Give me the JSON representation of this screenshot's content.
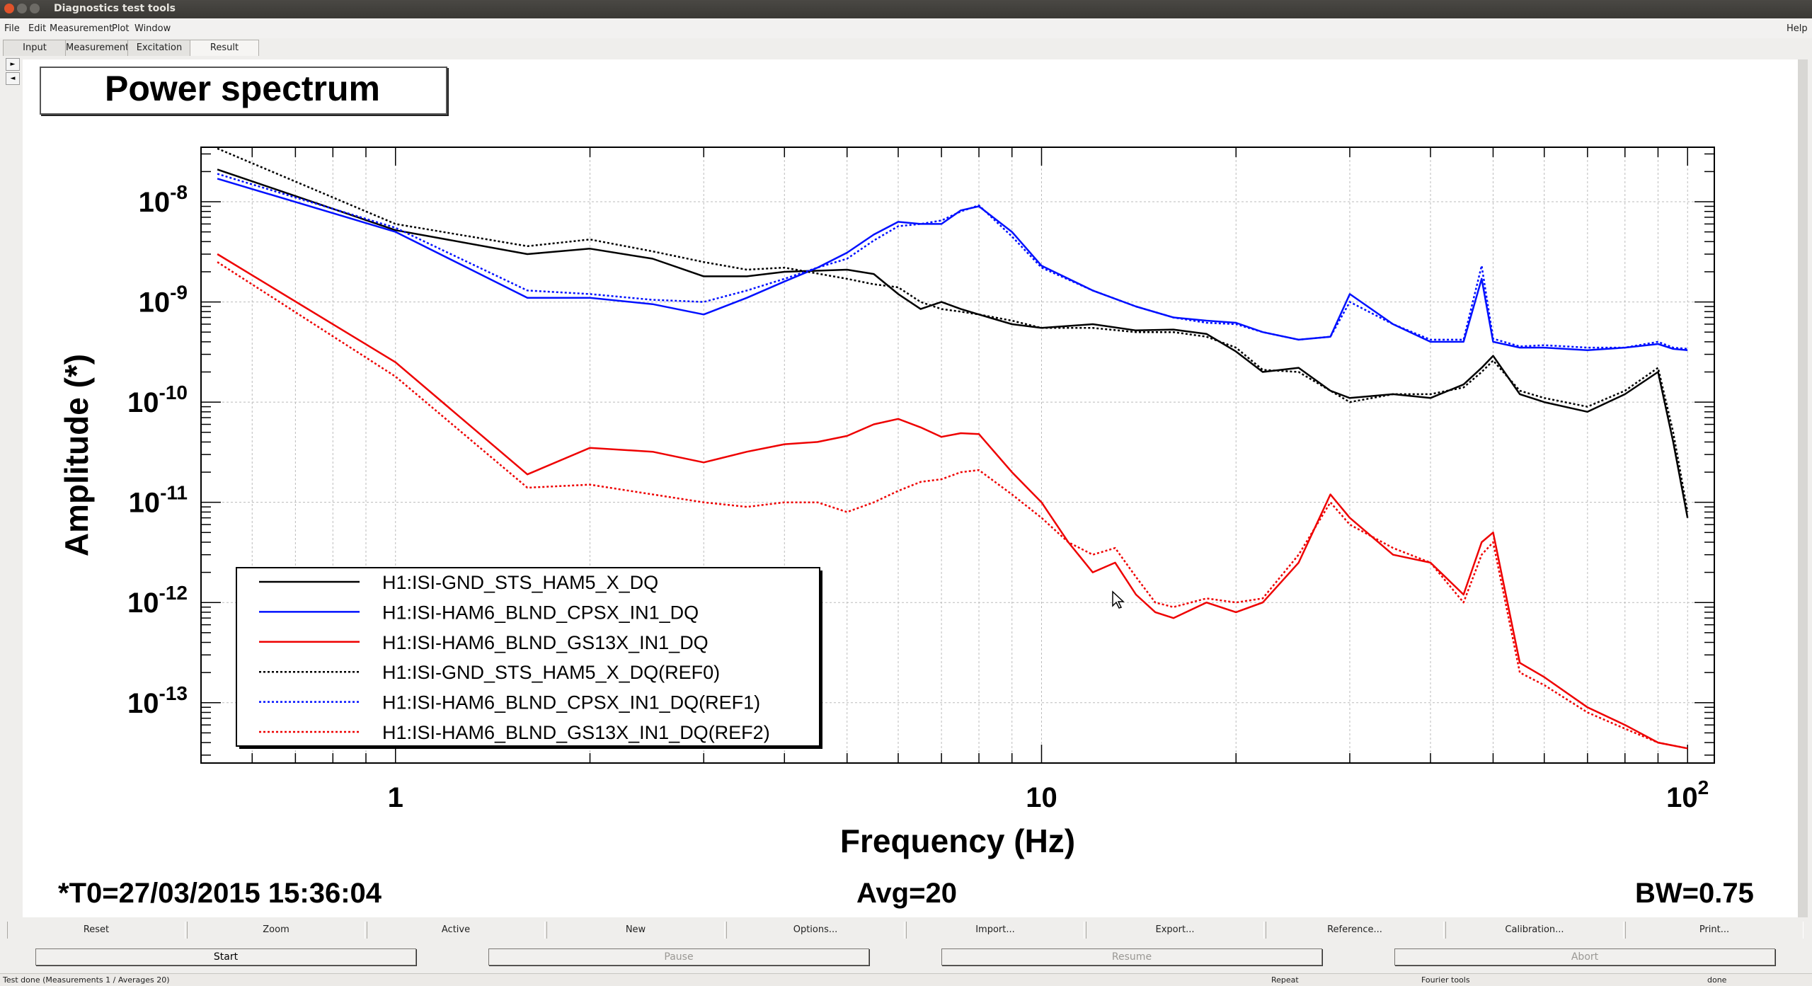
{
  "window": {
    "title": "Diagnostics test tools"
  },
  "menu": {
    "items": [
      "File",
      "Edit",
      "Measurement",
      "Plot",
      "Window"
    ],
    "help": "Help"
  },
  "tabs": [
    "Input",
    "Measurement",
    "Excitation",
    "Result"
  ],
  "active_tab": "Result",
  "plot_title": "Power spectrum",
  "footer": {
    "t0": "*T0=27/03/2015 15:36:04",
    "avg": "Avg=20",
    "bw": "BW=0.75"
  },
  "buttons_row1": [
    "Reset",
    "Zoom",
    "Active",
    "New",
    "Options...",
    "Import...",
    "Export...",
    "Reference...",
    "Calibration...",
    "Print..."
  ],
  "buttons_row2": [
    "Start",
    "Pause",
    "Resume",
    "Abort"
  ],
  "status": {
    "message": "Test done (Measurements 1 / Averages 20)",
    "repeat": "Repeat",
    "tools": "Fourier tools",
    "state": "done"
  },
  "colors": {
    "black": "#000000",
    "blue": "#0010ff",
    "red": "#ee0000"
  },
  "chart_data": {
    "type": "line",
    "title": "Power spectrum",
    "xlabel": "Frequency (Hz)",
    "ylabel": "Amplitude (*)",
    "xscale": "log",
    "yscale": "log",
    "xlim": [
      0.5,
      110
    ],
    "ylim": [
      2.5e-14,
      3.5e-08
    ],
    "x_ticks": [
      {
        "v": 1,
        "label": "1"
      },
      {
        "v": 10,
        "label": "10"
      },
      {
        "v": 100,
        "label": "10",
        "sup": "2"
      }
    ],
    "y_ticks": [
      {
        "v": 1e-08,
        "exp": "-8"
      },
      {
        "v": 1e-09,
        "exp": "-9"
      },
      {
        "v": 1e-10,
        "exp": "-10"
      },
      {
        "v": 1e-11,
        "exp": "-11"
      },
      {
        "v": 1e-12,
        "exp": "-12"
      },
      {
        "v": 1e-13,
        "exp": "-13"
      }
    ],
    "grid": true,
    "legend_position": "bottom-left",
    "series": [
      {
        "name": "H1:ISI-GND_STS_HAM5_X_DQ",
        "color": "#000000",
        "dash": false,
        "x": [
          0.53,
          1,
          1.6,
          2,
          2.5,
          3,
          3.5,
          4,
          5,
          5.5,
          6,
          6.5,
          7,
          7.5,
          8,
          9,
          10,
          12,
          14,
          16,
          18,
          20,
          22,
          25,
          28,
          30,
          35,
          40,
          45,
          48,
          50,
          55,
          60,
          70,
          80,
          90,
          95,
          100
        ],
        "y": [
          2.1e-08,
          5.2e-09,
          3e-09,
          3.4e-09,
          2.7e-09,
          1.8e-09,
          1.8e-09,
          2e-09,
          2.1e-09,
          1.9e-09,
          1.2e-09,
          8.5e-10,
          1e-09,
          8.5e-10,
          7.5e-10,
          6e-10,
          5.5e-10,
          6e-10,
          5.2e-10,
          5.3e-10,
          4.8e-10,
          3.2e-10,
          2e-10,
          2.2e-10,
          1.3e-10,
          1.1e-10,
          1.2e-10,
          1.1e-10,
          1.5e-10,
          2.2e-10,
          2.9e-10,
          1.2e-10,
          1e-10,
          8e-11,
          1.2e-10,
          2e-10,
          4e-11,
          7e-12
        ]
      },
      {
        "name": "H1:ISI-HAM6_BLND_CPSX_IN1_DQ",
        "color": "#0010ff",
        "dash": false,
        "x": [
          0.53,
          1,
          1.6,
          2,
          2.5,
          3,
          3.5,
          4,
          4.5,
          5,
          5.5,
          6,
          6.5,
          7,
          7.5,
          8,
          9,
          10,
          12,
          14,
          16,
          18,
          20,
          22,
          25,
          28,
          30,
          35,
          40,
          45,
          48,
          50,
          55,
          60,
          70,
          80,
          90,
          95,
          100
        ],
        "y": [
          1.7e-08,
          5e-09,
          1.1e-09,
          1.1e-09,
          9.5e-10,
          7.5e-10,
          1.1e-09,
          1.6e-09,
          2.2e-09,
          3.1e-09,
          4.7e-09,
          6.3e-09,
          6e-09,
          6e-09,
          8.2e-09,
          9e-09,
          5e-09,
          2.3e-09,
          1.3e-09,
          9e-10,
          7e-10,
          6.5e-10,
          6.2e-10,
          5e-10,
          4.2e-10,
          4.5e-10,
          1.2e-09,
          6e-10,
          4e-10,
          4e-10,
          1.7e-09,
          4e-10,
          3.5e-10,
          3.5e-10,
          3.3e-10,
          3.5e-10,
          3.8e-10,
          3.4e-10,
          3.3e-10
        ]
      },
      {
        "name": "H1:ISI-HAM6_BLND_GS13X_IN1_DQ",
        "color": "#ee0000",
        "dash": false,
        "x": [
          0.53,
          1,
          1.6,
          2,
          2.5,
          3,
          3.5,
          4,
          4.5,
          5,
          5.5,
          6,
          6.5,
          7,
          7.5,
          8,
          9,
          10,
          11,
          12,
          13,
          14,
          15,
          16,
          18,
          20,
          22,
          25,
          28,
          30,
          35,
          40,
          45,
          48,
          50,
          55,
          60,
          70,
          80,
          90,
          100
        ],
        "y": [
          3e-09,
          2.5e-10,
          1.9e-11,
          3.5e-11,
          3.2e-11,
          2.5e-11,
          3.2e-11,
          3.8e-11,
          4e-11,
          4.6e-11,
          6e-11,
          6.8e-11,
          5.6e-11,
          4.5e-11,
          4.9e-11,
          4.8e-11,
          2e-11,
          1e-11,
          4e-12,
          2e-12,
          2.5e-12,
          1.2e-12,
          8e-13,
          7e-13,
          1e-12,
          8e-13,
          1e-12,
          2.5e-12,
          1.2e-11,
          7e-12,
          3e-12,
          2.5e-12,
          1.2e-12,
          4e-12,
          5e-12,
          2.5e-13,
          1.8e-13,
          9e-14,
          6e-14,
          4e-14,
          3.5e-14
        ]
      },
      {
        "name": "H1:ISI-GND_STS_HAM5_X_DQ(REF0)",
        "color": "#000000",
        "dash": true,
        "x": [
          0.53,
          1,
          1.6,
          2,
          2.5,
          3,
          3.5,
          4,
          5,
          5.5,
          6,
          6.5,
          7,
          7.5,
          8,
          9,
          10,
          12,
          14,
          16,
          18,
          20,
          22,
          25,
          28,
          30,
          35,
          40,
          45,
          48,
          50,
          55,
          60,
          70,
          80,
          90,
          95,
          100
        ],
        "y": [
          3.4e-08,
          6e-09,
          3.6e-09,
          4.2e-09,
          3.2e-09,
          2.5e-09,
          2.1e-09,
          2.2e-09,
          1.7e-09,
          1.5e-09,
          1.4e-09,
          1e-09,
          8.5e-10,
          8e-10,
          7.5e-10,
          6.5e-10,
          5.5e-10,
          5.5e-10,
          5e-10,
          5e-10,
          4.5e-10,
          3.5e-10,
          2.1e-10,
          2e-10,
          1.3e-10,
          1e-10,
          1.2e-10,
          1.2e-10,
          1.4e-10,
          2e-10,
          2.6e-10,
          1.3e-10,
          1.1e-10,
          9e-11,
          1.3e-10,
          2.2e-10,
          5e-11,
          8e-12
        ]
      },
      {
        "name": "H1:ISI-HAM6_BLND_CPSX_IN1_DQ(REF1)",
        "color": "#0010ff",
        "dash": true,
        "x": [
          0.53,
          1,
          1.6,
          2,
          2.5,
          3,
          3.5,
          4,
          4.5,
          5,
          5.5,
          6,
          6.5,
          7,
          7.5,
          8,
          9,
          10,
          12,
          14,
          16,
          18,
          20,
          22,
          25,
          28,
          30,
          35,
          40,
          45,
          48,
          50,
          55,
          60,
          70,
          80,
          90,
          95,
          100
        ],
        "y": [
          1.9e-08,
          5.5e-09,
          1.3e-09,
          1.2e-09,
          1.05e-09,
          1e-09,
          1.3e-09,
          1.7e-09,
          2.2e-09,
          2.7e-09,
          4.1e-09,
          5.7e-09,
          6e-09,
          6.5e-09,
          8e-09,
          9.2e-09,
          4.5e-09,
          2.2e-09,
          1.3e-09,
          9e-10,
          7e-10,
          6.2e-10,
          6e-10,
          5e-10,
          4.2e-10,
          4.5e-10,
          1e-09,
          6e-10,
          4.2e-10,
          4.2e-10,
          2.3e-09,
          4.3e-10,
          3.6e-10,
          3.7e-10,
          3.5e-10,
          3.5e-10,
          4e-10,
          3.5e-10,
          3.4e-10
        ]
      },
      {
        "name": "H1:ISI-HAM6_BLND_GS13X_IN1_DQ(REF2)",
        "color": "#ee0000",
        "dash": true,
        "x": [
          0.53,
          1,
          1.6,
          2,
          2.5,
          3,
          3.5,
          4,
          4.5,
          5,
          5.5,
          6,
          6.5,
          7,
          7.5,
          8,
          9,
          10,
          11,
          12,
          13,
          14,
          15,
          16,
          18,
          20,
          22,
          25,
          28,
          30,
          35,
          40,
          45,
          48,
          50,
          55,
          60,
          70,
          80,
          90,
          100
        ],
        "y": [
          2.5e-09,
          1.8e-10,
          1.4e-11,
          1.5e-11,
          1.2e-11,
          1e-11,
          9e-12,
          1e-11,
          1e-11,
          8e-12,
          1e-11,
          1.3e-11,
          1.6e-11,
          1.7e-11,
          2e-11,
          2.1e-11,
          1.2e-11,
          7e-12,
          4e-12,
          3e-12,
          3.5e-12,
          1.8e-12,
          1e-12,
          9e-13,
          1.1e-12,
          1e-12,
          1.1e-12,
          3e-12,
          1e-11,
          6e-12,
          3.5e-12,
          2.5e-12,
          1e-12,
          3e-12,
          4e-12,
          2e-13,
          1.5e-13,
          8e-14,
          5.5e-14,
          4e-14,
          3.5e-14
        ]
      }
    ]
  }
}
